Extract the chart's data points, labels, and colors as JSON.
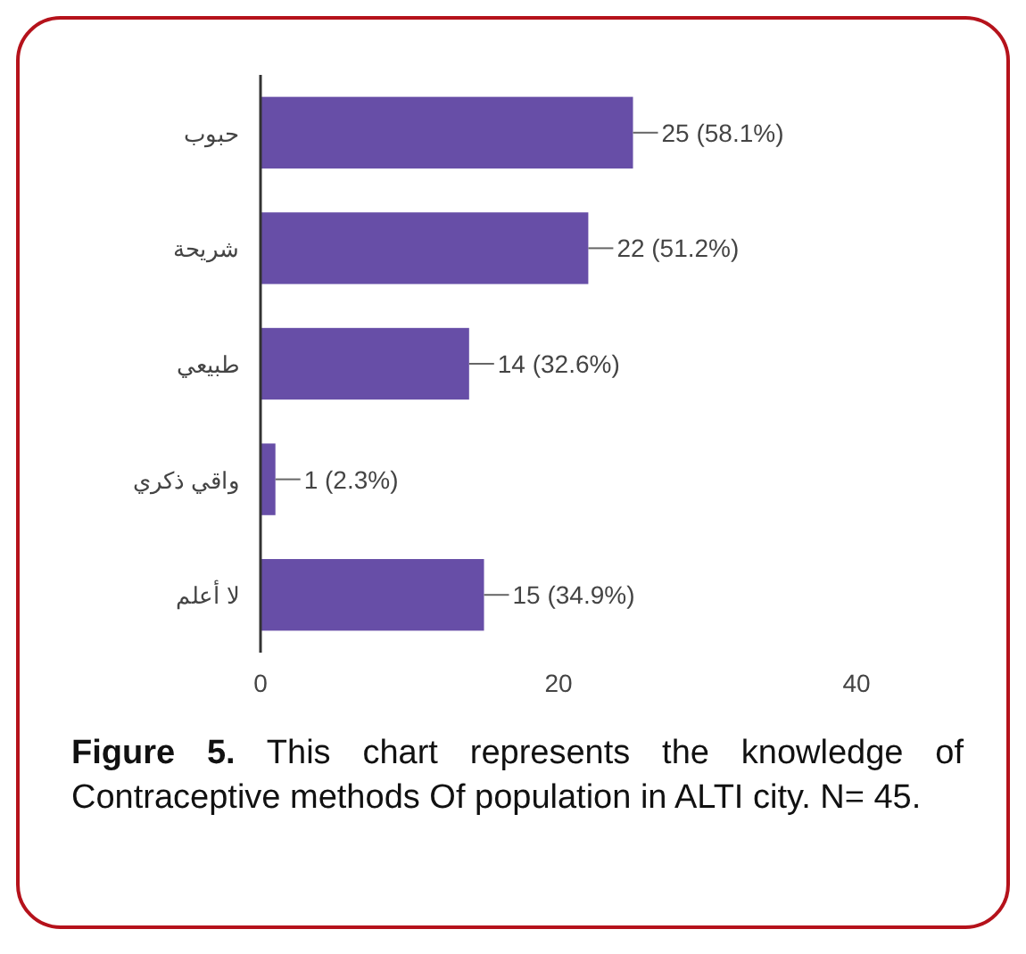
{
  "chart_data": {
    "type": "bar",
    "orientation": "horizontal",
    "categories": [
      "حبوب",
      "شريحة",
      "طبيعي",
      "واقي ذكري",
      "لا أعلم"
    ],
    "values": [
      25,
      22,
      14,
      1,
      15
    ],
    "value_labels": [
      "25 (58.1%)",
      "22 (51.2%)",
      "14 (32.6%)",
      "1 (2.3%)",
      "15 (34.9%)"
    ],
    "color": "#674ea7",
    "xlim": [
      0,
      40
    ],
    "xticks": [
      0,
      20,
      40
    ],
    "grid": false,
    "annotations": [
      "Figure 5. This chart represents the knowledge of Contraceptive methods Of population in ALTI city. N= 45."
    ]
  }
}
